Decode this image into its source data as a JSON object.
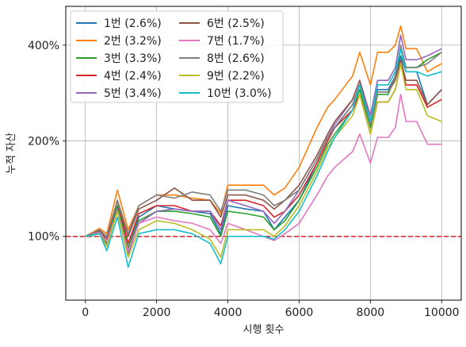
{
  "chart_data": {
    "type": "line",
    "xlabel": "시행 횟수",
    "ylabel": "누적 자산",
    "xlim": [
      -550,
      10550
    ],
    "ylim_log": [
      0.63,
      5.3
    ],
    "y_scale": "log",
    "x_ticks": [
      0,
      2000,
      4000,
      6000,
      8000,
      10000
    ],
    "x_tick_labels": [
      "0",
      "2000",
      "4000",
      "6000",
      "8000",
      "10000"
    ],
    "y_ticks": [
      1,
      2,
      4
    ],
    "y_tick_labels": [
      "100%",
      "200%",
      "400%"
    ],
    "grid": true,
    "legend_position": "top-left",
    "baseline": {
      "y": 1.0,
      "color": "#d62728",
      "style": "dashed"
    },
    "series": [
      {
        "name": "1번 (2.6%)",
        "color": "#1f77b4",
        "x": [
          0,
          400,
          600,
          900,
          1200,
          1500,
          2000,
          2500,
          3000,
          3500,
          3800,
          4000,
          4500,
          5000,
          5300,
          5600,
          6000,
          6500,
          6800,
          7000,
          7500,
          7700,
          8000,
          8200,
          8500,
          8700,
          8850,
          9000,
          9300,
          9600,
          10000
        ],
        "y": [
          1.0,
          1.03,
          0.96,
          1.25,
          0.92,
          1.15,
          1.25,
          1.22,
          1.2,
          1.18,
          1.02,
          1.25,
          1.22,
          1.2,
          1.05,
          1.15,
          1.3,
          1.7,
          2.0,
          2.2,
          2.6,
          3.0,
          2.25,
          2.9,
          2.9,
          3.2,
          3.7,
          3.3,
          3.3,
          2.6,
          2.9
        ]
      },
      {
        "name": "2번 (3.2%)",
        "color": "#ff7f0e",
        "x": [
          0,
          400,
          600,
          900,
          1200,
          1500,
          2000,
          2500,
          3000,
          3500,
          3800,
          4000,
          4500,
          5000,
          5300,
          5600,
          6000,
          6500,
          6800,
          7000,
          7500,
          7700,
          8000,
          8200,
          8500,
          8700,
          8850,
          9000,
          9300,
          9600,
          10000
        ],
        "y": [
          1.0,
          1.06,
          1.02,
          1.4,
          1.05,
          1.25,
          1.35,
          1.35,
          1.32,
          1.3,
          1.18,
          1.45,
          1.45,
          1.45,
          1.35,
          1.42,
          1.65,
          2.2,
          2.55,
          2.7,
          3.2,
          3.8,
          3.0,
          3.8,
          3.8,
          4.0,
          4.6,
          3.9,
          3.9,
          3.3,
          3.5
        ]
      },
      {
        "name": "3번 (3.3%)",
        "color": "#2ca02c",
        "x": [
          0,
          400,
          600,
          900,
          1200,
          1500,
          2000,
          2500,
          3000,
          3500,
          3800,
          4000,
          4500,
          5000,
          5300,
          5600,
          6000,
          6500,
          6800,
          7000,
          7500,
          7700,
          8000,
          8200,
          8500,
          8700,
          8850,
          9000,
          9300,
          9600,
          10000
        ],
        "y": [
          1.0,
          1.02,
          0.95,
          1.25,
          0.92,
          1.12,
          1.2,
          1.2,
          1.18,
          1.15,
          1.0,
          1.2,
          1.18,
          1.15,
          1.05,
          1.12,
          1.3,
          1.65,
          1.95,
          2.1,
          2.5,
          2.9,
          2.2,
          2.8,
          2.8,
          3.2,
          3.9,
          3.4,
          3.4,
          3.6,
          3.8
        ]
      },
      {
        "name": "4번 (2.4%)",
        "color": "#d62728",
        "x": [
          0,
          400,
          600,
          900,
          1200,
          1500,
          2000,
          2500,
          3000,
          3500,
          3800,
          4000,
          4500,
          5000,
          5300,
          5600,
          6000,
          6500,
          6800,
          7000,
          7500,
          7700,
          8000,
          8200,
          8500,
          8700,
          8850,
          9000,
          9300,
          9600,
          10000
        ],
        "y": [
          1.0,
          1.04,
          0.98,
          1.3,
          0.95,
          1.18,
          1.25,
          1.25,
          1.2,
          1.2,
          1.08,
          1.3,
          1.3,
          1.25,
          1.15,
          1.2,
          1.35,
          1.7,
          2.0,
          2.2,
          2.5,
          2.8,
          2.1,
          2.65,
          2.65,
          2.9,
          3.5,
          3.0,
          3.0,
          2.55,
          2.7
        ]
      },
      {
        "name": "5번 (3.4%)",
        "color": "#9467bd",
        "x": [
          0,
          400,
          600,
          900,
          1200,
          1500,
          2000,
          2500,
          3000,
          3500,
          3800,
          4000,
          4500,
          5000,
          5300,
          5600,
          6000,
          6500,
          6800,
          7000,
          7500,
          7700,
          8000,
          8200,
          8500,
          8700,
          8850,
          9000,
          9300,
          9600,
          10000
        ],
        "y": [
          1.0,
          1.02,
          0.93,
          1.22,
          0.88,
          1.1,
          1.2,
          1.22,
          1.2,
          1.2,
          1.05,
          1.3,
          1.25,
          1.2,
          1.1,
          1.2,
          1.4,
          1.75,
          2.05,
          2.25,
          2.7,
          3.1,
          2.4,
          3.1,
          3.1,
          3.4,
          4.3,
          3.6,
          3.6,
          3.7,
          3.9
        ]
      },
      {
        "name": "6번 (2.5%)",
        "color": "#8c564b",
        "x": [
          0,
          400,
          600,
          900,
          1200,
          1500,
          2000,
          2500,
          3000,
          3500,
          3800,
          4000,
          4500,
          5000,
          5300,
          5600,
          6000,
          6500,
          6800,
          7000,
          7500,
          7700,
          8000,
          8200,
          8500,
          8700,
          8850,
          9000,
          9300,
          9600,
          10000
        ],
        "y": [
          1.0,
          1.04,
          0.98,
          1.3,
          1.0,
          1.22,
          1.3,
          1.42,
          1.3,
          1.3,
          1.15,
          1.35,
          1.35,
          1.3,
          1.22,
          1.3,
          1.45,
          1.8,
          2.1,
          2.3,
          2.7,
          3.1,
          2.3,
          2.85,
          2.85,
          3.1,
          3.6,
          3.1,
          3.1,
          2.6,
          2.9
        ]
      },
      {
        "name": "7번 (1.7%)",
        "color": "#e377c2",
        "x": [
          0,
          400,
          600,
          900,
          1200,
          1500,
          2000,
          2500,
          3000,
          3500,
          3800,
          4000,
          4500,
          5000,
          5300,
          5600,
          6000,
          6500,
          6800,
          7000,
          7500,
          7700,
          8000,
          8200,
          8500,
          8700,
          8850,
          9000,
          9300,
          9600,
          10000
        ],
        "y": [
          1.0,
          1.03,
          0.96,
          1.2,
          0.9,
          1.1,
          1.15,
          1.12,
          1.1,
          1.05,
          0.95,
          1.1,
          1.05,
          1.0,
          0.97,
          1.02,
          1.1,
          1.35,
          1.55,
          1.65,
          1.85,
          2.1,
          1.7,
          2.05,
          2.05,
          2.2,
          2.8,
          2.3,
          2.3,
          1.95,
          1.95
        ]
      },
      {
        "name": "8번 (2.6%)",
        "color": "#7f7f7f",
        "x": [
          0,
          400,
          600,
          900,
          1200,
          1500,
          2000,
          2500,
          3000,
          3500,
          3800,
          4000,
          4500,
          5000,
          5300,
          5600,
          6000,
          6500,
          6800,
          7000,
          7500,
          7700,
          8000,
          8200,
          8500,
          8700,
          8850,
          9000,
          9300,
          9600,
          10000
        ],
        "y": [
          1.0,
          1.05,
          1.0,
          1.3,
          1.02,
          1.25,
          1.35,
          1.32,
          1.38,
          1.35,
          1.2,
          1.4,
          1.4,
          1.35,
          1.25,
          1.3,
          1.4,
          1.75,
          2.05,
          2.2,
          2.6,
          3.0,
          2.25,
          2.85,
          2.85,
          3.2,
          4.0,
          3.4,
          3.4,
          3.5,
          3.8
        ]
      },
      {
        "name": "9번 (2.2%)",
        "color": "#bcbd22",
        "x": [
          0,
          400,
          600,
          900,
          1200,
          1500,
          2000,
          2500,
          3000,
          3500,
          3800,
          4000,
          4500,
          5000,
          5300,
          5600,
          6000,
          6500,
          6800,
          7000,
          7500,
          7700,
          8000,
          8200,
          8500,
          8700,
          8850,
          9000,
          9300,
          9600,
          10000
        ],
        "y": [
          1.0,
          1.02,
          0.93,
          1.2,
          0.86,
          1.05,
          1.12,
          1.1,
          1.05,
          0.98,
          0.86,
          1.05,
          1.05,
          1.05,
          1.0,
          1.08,
          1.25,
          1.6,
          1.9,
          2.05,
          2.4,
          2.8,
          2.1,
          2.65,
          2.65,
          2.9,
          3.5,
          2.9,
          2.9,
          2.4,
          2.3
        ]
      },
      {
        "name": "10번 (3.0%)",
        "color": "#17becf",
        "x": [
          0,
          400,
          600,
          900,
          1200,
          1500,
          2000,
          2500,
          3000,
          3500,
          3800,
          4000,
          4500,
          5000,
          5300,
          5600,
          6000,
          6500,
          6800,
          7000,
          7500,
          7700,
          8000,
          8200,
          8500,
          8700,
          8850,
          9000,
          9300,
          9600,
          10000
        ],
        "y": [
          1.0,
          1.02,
          0.9,
          1.15,
          0.8,
          1.02,
          1.05,
          1.05,
          1.02,
          0.95,
          0.82,
          1.0,
          1.0,
          1.0,
          0.98,
          1.05,
          1.2,
          1.55,
          1.85,
          2.05,
          2.5,
          3.0,
          2.3,
          3.0,
          3.0,
          3.3,
          3.9,
          3.3,
          3.3,
          3.2,
          3.3
        ]
      }
    ]
  }
}
